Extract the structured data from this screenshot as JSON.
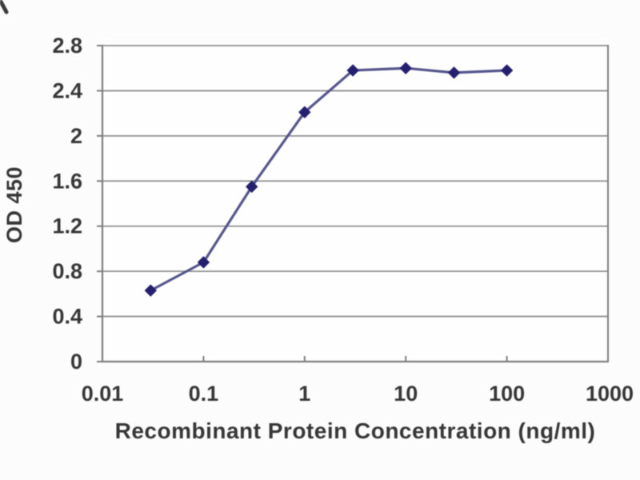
{
  "chart_data": {
    "type": "line",
    "title": "",
    "xlabel": "Recombinant Protein Concentration (ng/ml)",
    "ylabel": "OD 450",
    "x_scale": "log",
    "xlim": [
      0.01,
      1000
    ],
    "x_tick_values": [
      0.01,
      0.1,
      1,
      10,
      100,
      1000
    ],
    "x_tick_labels": [
      "0.01",
      "0.1",
      "1",
      "10",
      "100",
      "1000"
    ],
    "ylim": [
      0,
      2.8
    ],
    "y_tick_values": [
      0,
      0.4,
      0.8,
      1.2,
      1.6,
      2,
      2.4,
      2.8
    ],
    "y_tick_labels": [
      "0",
      "0.4",
      "0.8",
      "1.2",
      "1.6",
      "2",
      "2.4",
      "2.8"
    ],
    "grid": "horizontal",
    "legend": "none",
    "series": [
      {
        "name": "OD 450",
        "marker": "diamond",
        "x": [
          0.03,
          0.1,
          0.3,
          1,
          3,
          10,
          30,
          100
        ],
        "y": [
          0.63,
          0.88,
          1.55,
          2.21,
          2.58,
          2.6,
          2.56,
          2.58
        ]
      }
    ]
  },
  "colors": {
    "background": "#fcfcfc",
    "plot_background": "#fefefe",
    "gridline": "#8f8f8f",
    "axis": "#7d7d7d",
    "tick_text": "#363636",
    "series_line": "#54548c",
    "series_marker": "#241f6e",
    "corner_mark": "#3a3a3a"
  }
}
